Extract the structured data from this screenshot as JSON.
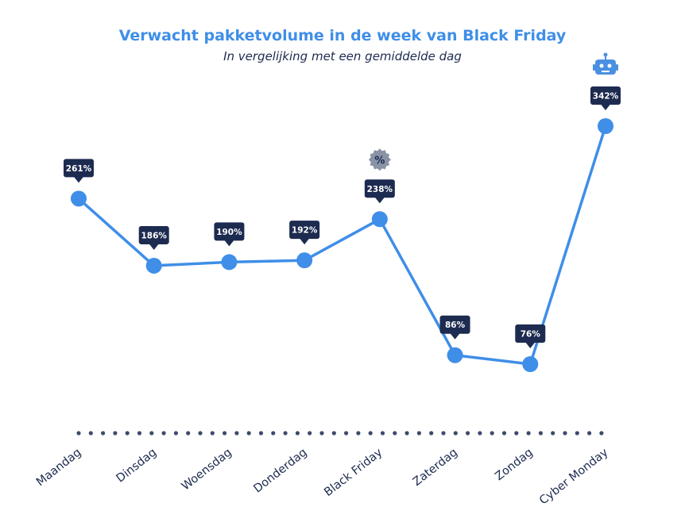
{
  "chart_data": {
    "type": "line",
    "title": "Verwacht pakketvolume in de week van Black Friday",
    "subtitle": "In vergelijking met een gemiddelde dag",
    "categories": [
      "Maandag",
      "Dinsdag",
      "Woensdag",
      "Donderdag",
      "Black Friday",
      "Zaterdag",
      "Zondag",
      "Cyber Monday"
    ],
    "values": [
      261,
      186,
      190,
      192,
      238,
      86,
      76,
      342
    ],
    "data_labels": [
      "261%",
      "186%",
      "190%",
      "192%",
      "238%",
      "86%",
      "76%",
      "342%"
    ],
    "icons": [
      {
        "category": "Black Friday",
        "name": "percent-badge-icon",
        "glyph": "%"
      },
      {
        "category": "Cyber Monday",
        "name": "robot-icon"
      }
    ],
    "grid": false,
    "legend": "none",
    "colors": {
      "line": "#3f8ee8",
      "point": "#3f8ee8",
      "label_bg": "#1d2b50",
      "label_text": "#ffffff",
      "axis_dots": "#1d2b50",
      "icon_grey": "#8a92a6",
      "icon_blue": "#4a90e2"
    }
  }
}
